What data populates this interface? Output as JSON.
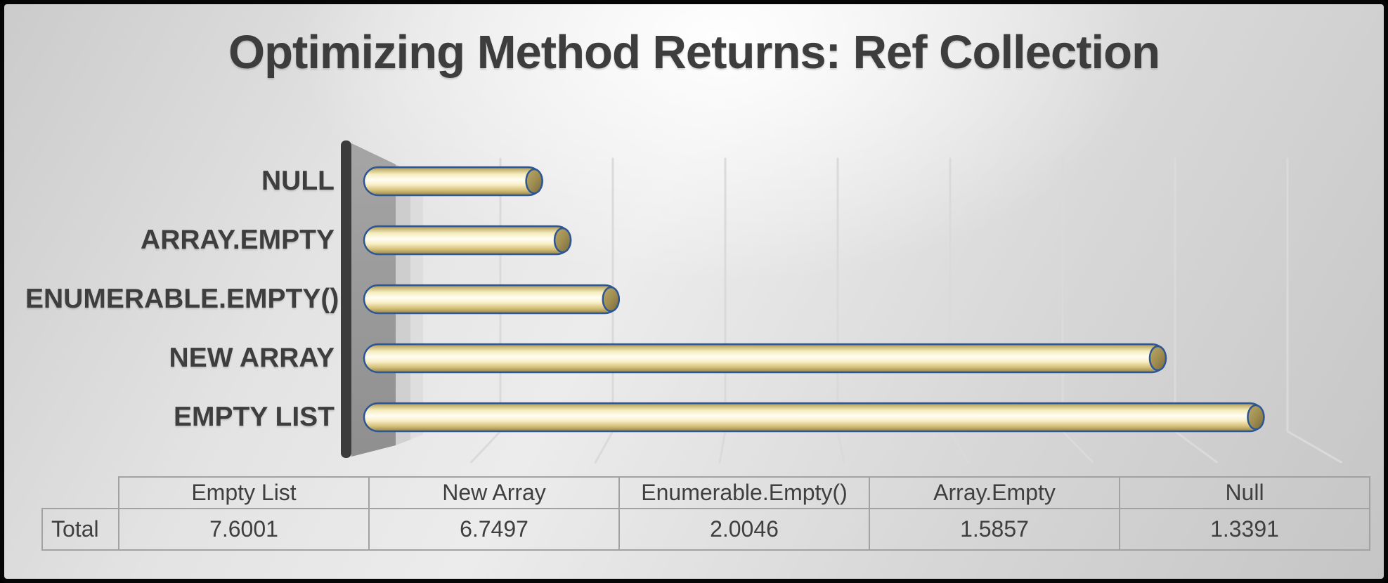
{
  "title": "Optimizing Method Returns: Ref Collection",
  "chart_data": {
    "type": "bar",
    "orientation": "horizontal",
    "title": "Optimizing Method Returns: Ref Collection",
    "series_name": "Total",
    "categories": [
      "NULL",
      "ARRAY.EMPTY",
      "ENUMERABLE.EMPTY()",
      "NEW ARRAY",
      "EMPTY LIST"
    ],
    "values": [
      1.3391,
      1.5857,
      2.0046,
      6.7497,
      7.6001
    ],
    "xlabel": "",
    "ylabel": "",
    "xlim": [
      0,
      8.3
    ],
    "gridline_values": [
      1,
      2,
      3,
      4,
      5,
      6,
      7,
      8
    ],
    "grid": "vertical-major",
    "legend_position": "none",
    "style": "3d-cylinder",
    "bar_fill_light": "#fffef4",
    "bar_fill_dark": "#96834a",
    "bar_border_color": "#2d5695",
    "wall_color": "#9c9c9c",
    "axis_line_color": "#3c3c3c",
    "gridline_color": "#dadada"
  },
  "table": {
    "row_header": "Total",
    "columns": [
      "Empty List",
      "New Array",
      "Enumerable.Empty()",
      "Array.Empty",
      "Null"
    ],
    "values": [
      "7.6001",
      "6.7497",
      "2.0046",
      "1.5857",
      "1.3391"
    ]
  }
}
